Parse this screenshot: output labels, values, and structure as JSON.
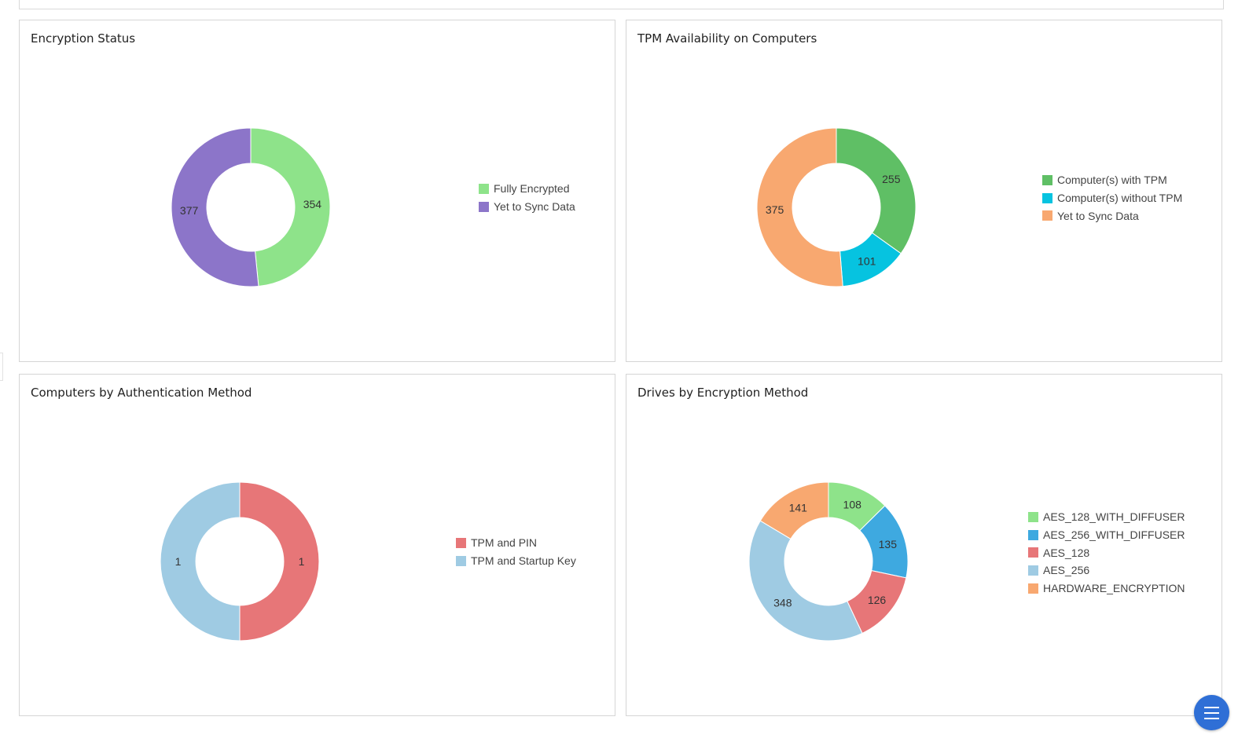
{
  "chart_data": [
    {
      "type": "pie",
      "title": "Encryption Status",
      "categories": [
        "Fully Encrypted",
        "Yet to Sync Data"
      ],
      "values": [
        354,
        377
      ],
      "colors": [
        "#8ee38a",
        "#8c75c9"
      ],
      "legend_position": "right"
    },
    {
      "type": "pie",
      "title": "TPM Availability on Computers",
      "categories": [
        "Computer(s) with TPM",
        "Computer(s) without TPM",
        "Yet to Sync Data"
      ],
      "values": [
        255,
        101,
        375
      ],
      "colors": [
        "#5fbf65",
        "#06c3e0",
        "#f8a870"
      ],
      "legend_position": "right"
    },
    {
      "type": "pie",
      "title": "Computers by Authentication Method",
      "categories": [
        "TPM and PIN",
        "TPM and Startup Key"
      ],
      "values": [
        1,
        1
      ],
      "colors": [
        "#e77678",
        "#9fcbe3"
      ],
      "legend_position": "right"
    },
    {
      "type": "pie",
      "title": "Drives by Encryption Method",
      "categories": [
        "AES_128_WITH_DIFFUSER",
        "AES_256_WITH_DIFFUSER",
        "AES_128",
        "AES_256",
        "HARDWARE_ENCRYPTION"
      ],
      "values": [
        108,
        135,
        126,
        348,
        141
      ],
      "colors": [
        "#8ee38a",
        "#3ea9e0",
        "#e77678",
        "#9fcbe3",
        "#f8a870"
      ],
      "legend_position": "right"
    }
  ],
  "ui": {
    "menu_button_icon": "hamburger-menu-icon",
    "menu_button_color": "#2f6fd6"
  }
}
